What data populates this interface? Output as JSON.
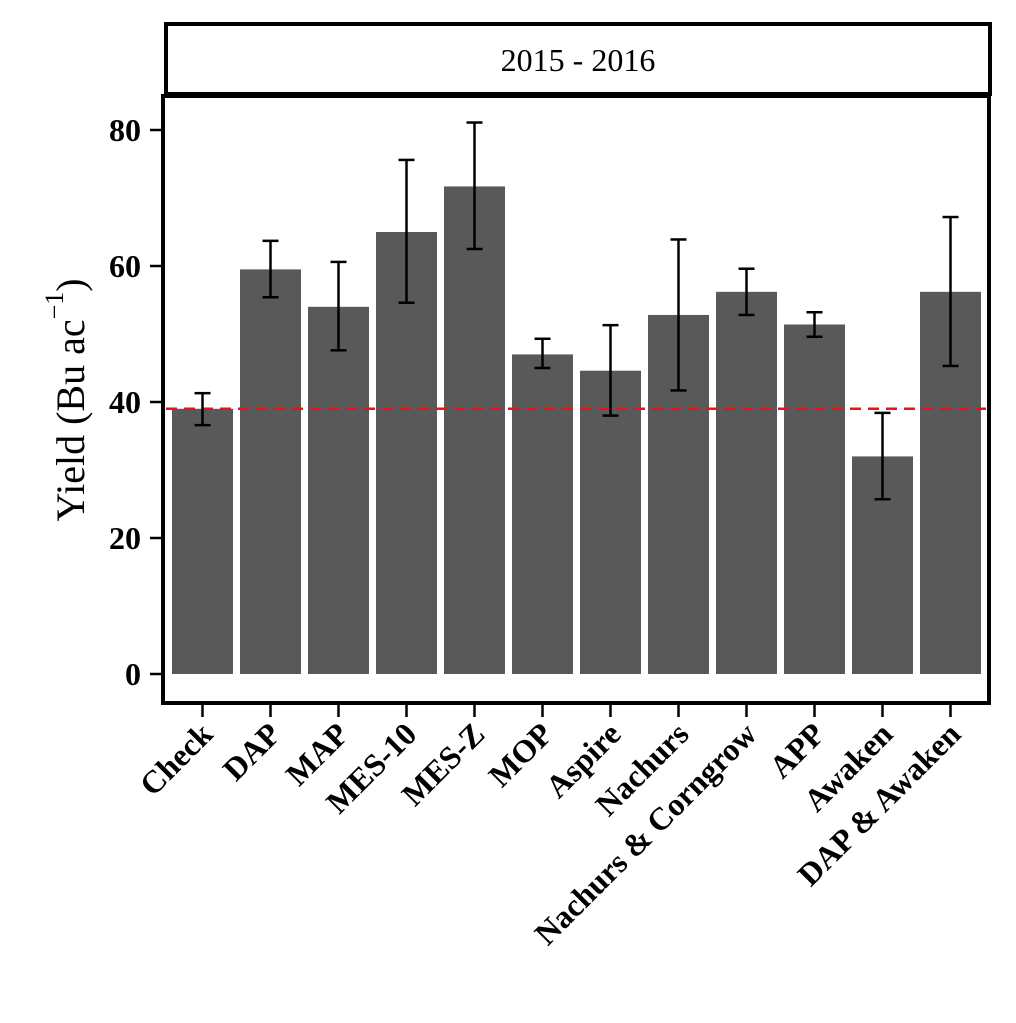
{
  "chart_data": {
    "type": "bar",
    "facet_label": "2015 - 2016",
    "title": "",
    "xlabel": "",
    "ylabel": "Yield",
    "ylabel_unit": "(Bu ac",
    "ylabel_superscript": "−1",
    "ylabel_close": ")",
    "ylim": [
      0,
      85
    ],
    "yticks": [
      "0",
      "20",
      "40",
      "60",
      "80"
    ],
    "reference_line": {
      "value": 39,
      "style": "dashed",
      "color": "#ee1111"
    },
    "bar_color": "#595959",
    "categories": [
      "Check",
      "DAP",
      "MAP",
      "MES-10",
      "MES-Z",
      "MOP",
      "Aspire",
      "Nachurs",
      "Nachurs & Corngrow",
      "APP",
      "Awaken",
      "DAP & Awaken"
    ],
    "values": [
      39,
      59.5,
      54,
      65,
      71.7,
      47,
      44.6,
      52.8,
      56.2,
      51.4,
      32,
      56.2
    ],
    "error_low": [
      36.6,
      55.4,
      47.6,
      54.6,
      62.5,
      45,
      38,
      41.7,
      52.8,
      49.6,
      25.7,
      45.3
    ],
    "error_high": [
      41.3,
      63.7,
      60.6,
      75.6,
      81.1,
      49.3,
      51.3,
      63.9,
      59.6,
      53.2,
      38.4,
      67.2
    ]
  }
}
